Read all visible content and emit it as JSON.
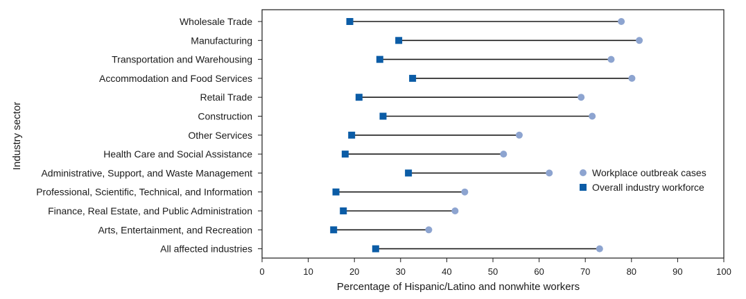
{
  "chart_data": {
    "type": "dumbbell",
    "xlabel": "Percentage  of Hispanic/Latino and nonwhite workers",
    "ylabel": "Industry sector",
    "xlim": [
      0,
      100
    ],
    "xticks": [
      0,
      10,
      20,
      30,
      40,
      50,
      60,
      70,
      80,
      90,
      100
    ],
    "legend_position": "right",
    "categories": [
      "Wholesale Trade",
      "Manufacturing",
      "Transportation and Warehousing",
      "Accommodation and Food Services",
      "Retail Trade",
      "Construction",
      "Other Services",
      "Health Care and Social Assistance",
      "Administrative, Support, and Waste Management",
      "Professional, Scientific, Technical, and Information",
      "Finance, Real Estate, and Public Administration",
      "Arts, Entertainment, and Recreation",
      "All affected industries"
    ],
    "series": [
      {
        "name": "Workplace outbreak cases",
        "marker": "circle",
        "color": "#8da4d0",
        "values": [
          77.8,
          81.7,
          75.6,
          80.1,
          69.1,
          71.5,
          55.7,
          52.3,
          62.2,
          43.9,
          41.8,
          36.1,
          73.1
        ]
      },
      {
        "name": "Overall industry workforce",
        "marker": "square",
        "color": "#0b5ca6",
        "values": [
          19.0,
          29.6,
          25.5,
          32.6,
          21.0,
          26.2,
          19.4,
          18.0,
          31.7,
          16.0,
          17.6,
          15.5,
          24.6
        ]
      }
    ]
  }
}
